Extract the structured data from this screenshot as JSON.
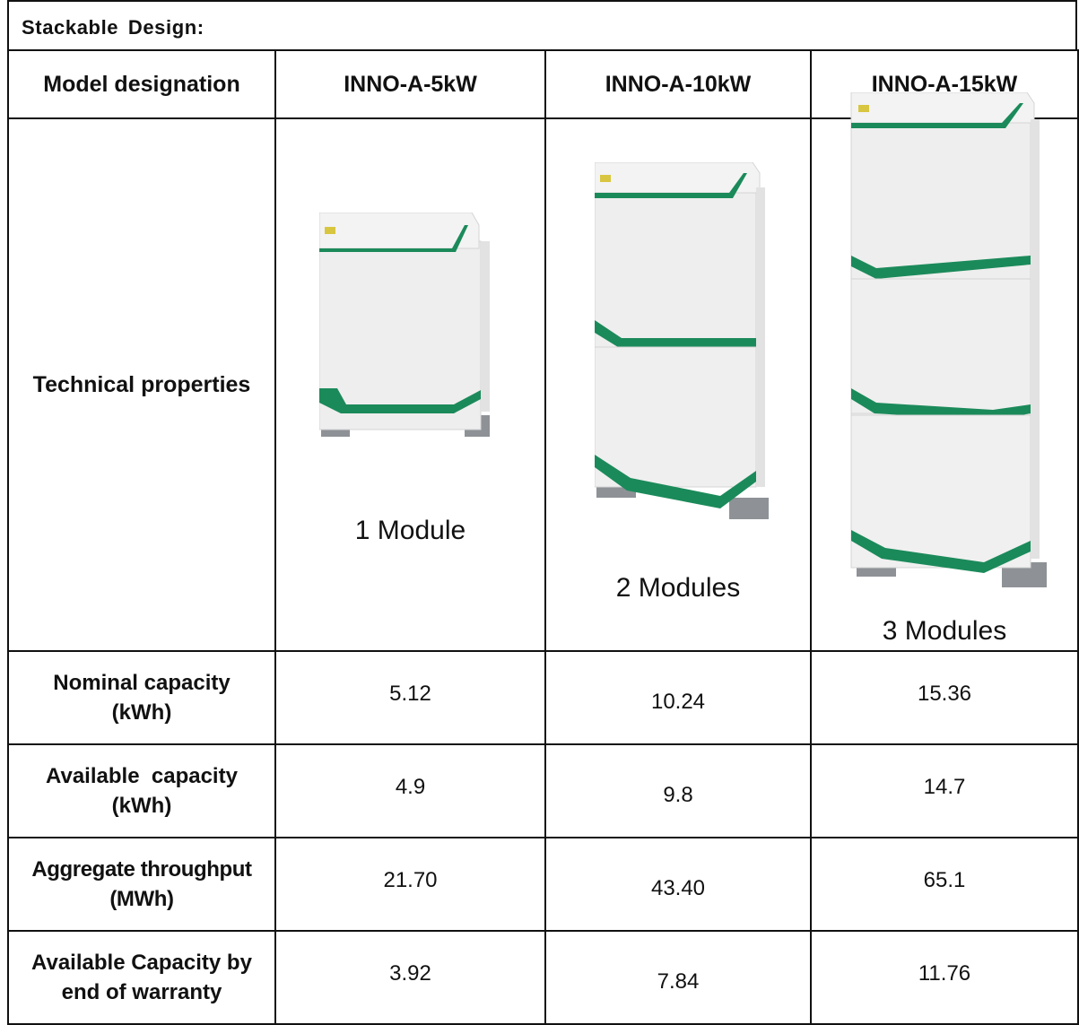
{
  "section_title": "Stackable  Design:",
  "header": {
    "label": "Model designation",
    "models": [
      "INNO-A-5kW",
      "INNO-A-10kW",
      "INNO-A-15kW"
    ]
  },
  "technical": {
    "label": "Technical properties",
    "captions": [
      "1 Module",
      "2 Modules",
      "3 Modules"
    ],
    "module_counts": [
      1,
      2,
      3
    ]
  },
  "rows": [
    {
      "label_line1": "Nominal capacity",
      "label_line2": "(kWh)",
      "values": [
        "5.12",
        "10.24",
        "15.36"
      ]
    },
    {
      "label_line1": "Available  capacity",
      "label_line2": "(kWh)",
      "values": [
        "4.9",
        "9.8",
        "14.7"
      ]
    },
    {
      "label_line1": "Aggregate throughput",
      "label_line2": "(MWh)",
      "values": [
        "21.70",
        "43.40",
        "65.1"
      ]
    },
    {
      "label_line1": "Available Capacity by",
      "label_line2": "end of warranty",
      "values": [
        "3.92",
        "7.84",
        "11.76"
      ]
    }
  ],
  "colors": {
    "accent": "#1b8a5a",
    "body": "#eeeeee",
    "base": "#8e9296",
    "border": "#111111"
  }
}
